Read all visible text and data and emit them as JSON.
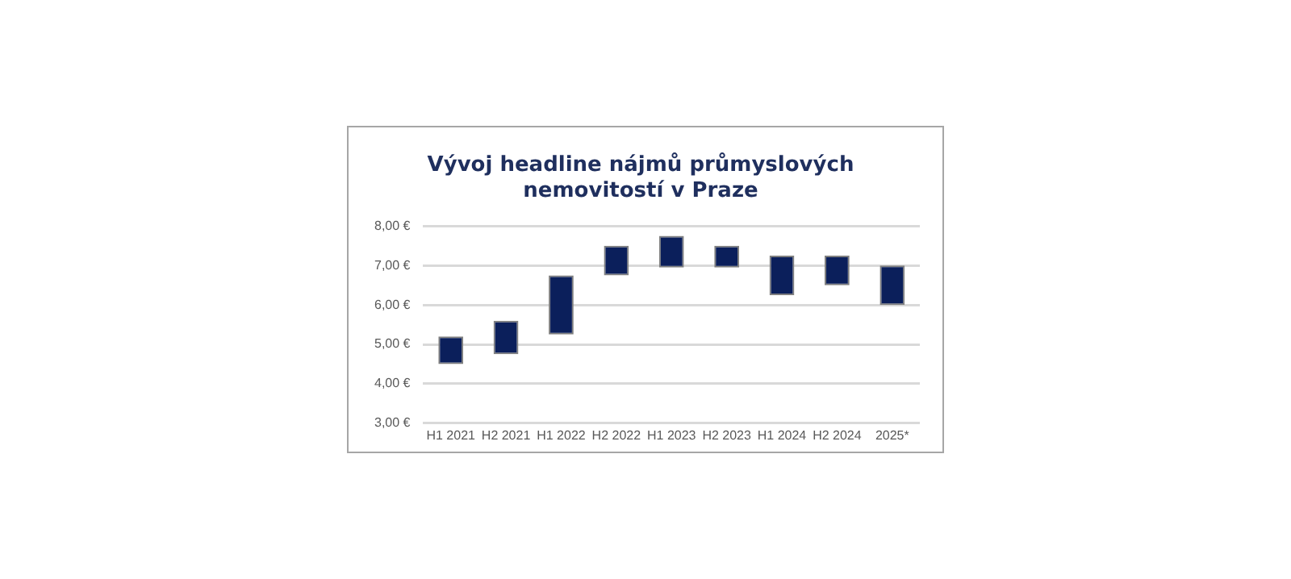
{
  "chart_data": {
    "type": "bar",
    "title": "Vývoj headline nájmů průmyslových nemovitostí v Praze",
    "categories": [
      "H1 2021",
      "H2 2021",
      "H1 2022",
      "H2 2022",
      "H1 2023",
      "H2 2023",
      "H1 2024",
      "H2 2024",
      "2025*"
    ],
    "base": [
      4.5,
      4.75,
      5.25,
      6.75,
      6.95,
      6.95,
      6.25,
      6.5,
      6.0
    ],
    "values": [
      0.7,
      0.85,
      1.5,
      0.75,
      0.8,
      0.55,
      1.0,
      0.75,
      1.0
    ],
    "color": "#0b1f5b",
    "ylim": [
      3,
      8
    ],
    "yticks": [
      {
        "value": 3,
        "label": "3,00 €"
      },
      {
        "value": 4,
        "label": "4,00 €"
      },
      {
        "value": 5,
        "label": "5,00 €"
      },
      {
        "value": 6,
        "label": "6,00 €"
      },
      {
        "value": 7,
        "label": "7,00 €"
      },
      {
        "value": 8,
        "label": "8,00 €"
      }
    ],
    "grid": "y"
  }
}
